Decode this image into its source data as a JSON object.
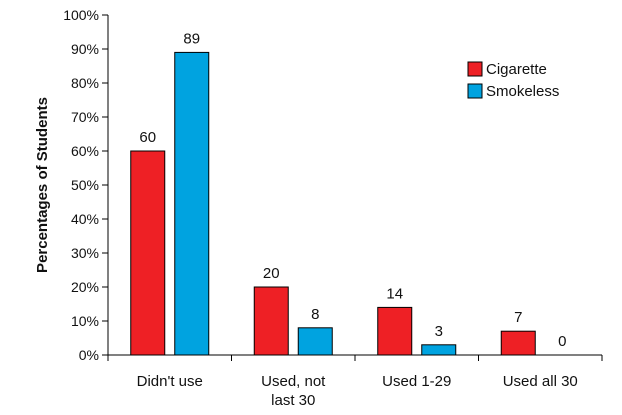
{
  "chart_data": {
    "type": "bar",
    "title": "",
    "xlabel": "",
    "ylabel": "Percentages of Students",
    "ylim": [
      0,
      100
    ],
    "yticks": [
      "0%",
      "10%",
      "20%",
      "30%",
      "40%",
      "50%",
      "60%",
      "70%",
      "80%",
      "90%",
      "100%"
    ],
    "categories": [
      [
        "Didn't use"
      ],
      [
        "Used, not",
        "last 30"
      ],
      [
        "Used 1-29"
      ],
      [
        "Used all 30"
      ]
    ],
    "series": [
      {
        "name": "Cigarette",
        "values": [
          60,
          20,
          14,
          7
        ],
        "color": "#ee2025"
      },
      {
        "name": "Smokeless",
        "values": [
          89,
          8,
          3,
          0
        ],
        "color": "#00a3e0"
      }
    ],
    "legend_position": "top-right",
    "grid": false
  }
}
